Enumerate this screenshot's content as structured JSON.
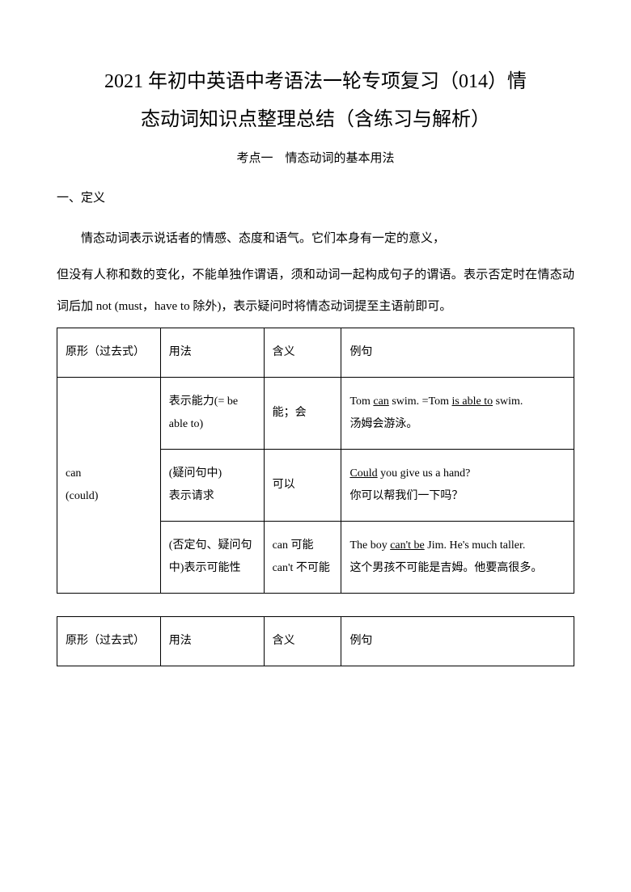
{
  "title_line1": "2021 年初中英语中考语法一轮专项复习（014）情",
  "title_line2": "态动词知识点整理总结（含练习与解析）",
  "section_point": "考点一　情态动词的基本用法",
  "heading_1": "一、定义",
  "para_1": "情态动词表示说话者的情感、态度和语气。它们本身有一定的意义，",
  "para_2": "但没有人称和数的变化，不能单独作谓语，须和动词一起构成句子的谓语。表示否定时在情态动词后加 not (must，have to 除外)，表示疑问时将情态动词提至主语前即可。",
  "table1": {
    "headers": {
      "form": "原形（过去式）",
      "usage": "用法",
      "meaning": "含义",
      "example": "例句"
    },
    "modal": "can\n(could)",
    "row1": {
      "usage": "表示能力(= be able to)",
      "meaning": "能；会",
      "ex_pre": "Tom ",
      "ex_u1": "can",
      "ex_mid": " swim. =Tom ",
      "ex_u2": "is able to",
      "ex_post": " swim.",
      "ex_cn": "汤姆会游泳。"
    },
    "row2": {
      "usage": "(疑问句中)\n表示请求",
      "meaning": "可以",
      "ex_u": "Could",
      "ex_post": " you give us a hand?",
      "ex_cn": "你可以帮我们一下吗？"
    },
    "row3": {
      "usage": "(否定句、疑问句中)表示可能性",
      "meaning": "can 可能\ncan't 不可能",
      "ex_pre": "The boy ",
      "ex_u": "can't be",
      "ex_post": " Jim. He's much taller.",
      "ex_cn": "这个男孩不可能是吉姆。他要高很多。"
    }
  },
  "table2": {
    "headers": {
      "form": "原形（过去式）",
      "usage": "用法",
      "meaning": "含义",
      "example": "例句"
    }
  }
}
